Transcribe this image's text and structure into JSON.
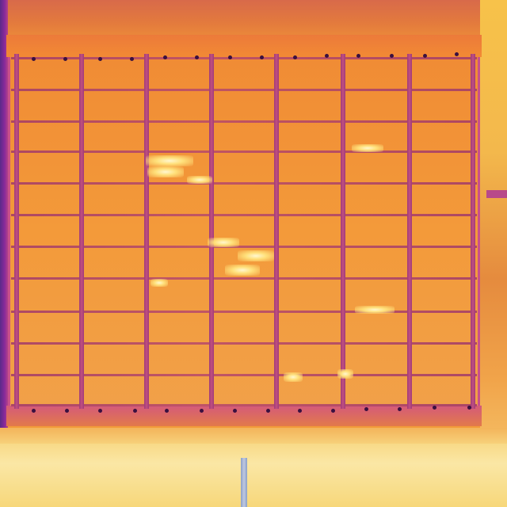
{
  "image": {
    "subject": "thermal-image-solar-panel",
    "palette": [
      "#5a2a8a",
      "#b3428a",
      "#f08a34",
      "#f7c24a",
      "#fff7d0"
    ]
  }
}
